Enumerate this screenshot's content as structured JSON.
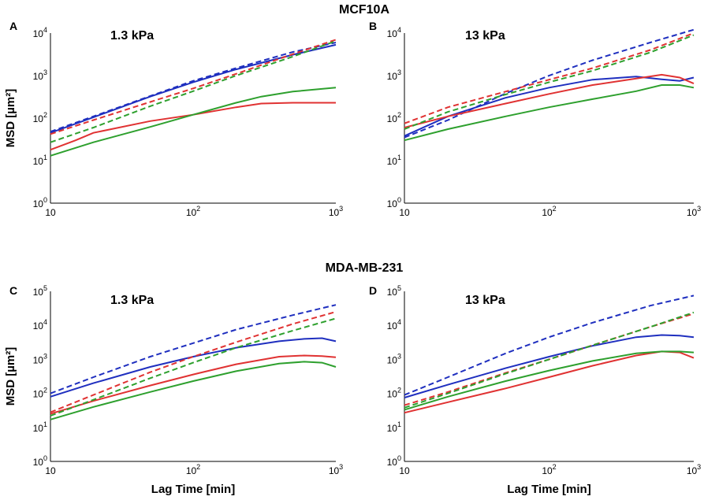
{
  "figure": {
    "row_titles": [
      "MCF10A",
      "MDA-MB-231"
    ]
  },
  "chart_data": [
    {
      "type": "line",
      "panel": "A",
      "title": "1.3 kPa",
      "xlabel": "",
      "ylabel": "MSD [µm²]",
      "xscale": "log",
      "yscale": "log",
      "xlim": [
        10,
        1000
      ],
      "ylim": [
        1,
        10000
      ],
      "xticks": [
        {
          "base": "10",
          "exp": ""
        },
        {
          "base": "10",
          "exp": "2"
        },
        {
          "base": "10",
          "exp": "3"
        }
      ],
      "yticks": [
        {
          "base": "10",
          "exp": "0"
        },
        {
          "base": "10",
          "exp": "1"
        },
        {
          "base": "10",
          "exp": "2"
        },
        {
          "base": "10",
          "exp": "3"
        },
        {
          "base": "10",
          "exp": "4"
        }
      ],
      "series": [
        {
          "name": "blue-dashed",
          "color": "#1f2fbf",
          "dash": true,
          "x": [
            10,
            20,
            50,
            100,
            200,
            500,
            1000
          ],
          "y": [
            48,
            110,
            330,
            750,
            1500,
            3600,
            6000
          ]
        },
        {
          "name": "blue-solid",
          "color": "#1f2fbf",
          "dash": false,
          "x": [
            10,
            20,
            50,
            100,
            200,
            500,
            1000
          ],
          "y": [
            45,
            105,
            320,
            700,
            1400,
            3100,
            5300
          ]
        },
        {
          "name": "red-dashed",
          "color": "#e03232",
          "dash": true,
          "x": [
            10,
            20,
            50,
            100,
            200,
            500,
            1000
          ],
          "y": [
            42,
            90,
            240,
            500,
            1100,
            3200,
            7000
          ]
        },
        {
          "name": "red-solid",
          "color": "#e03232",
          "dash": false,
          "x": [
            10,
            15,
            20,
            50,
            100,
            200,
            300,
            500,
            1000
          ],
          "y": [
            18,
            30,
            45,
            85,
            120,
            180,
            220,
            230,
            230
          ]
        },
        {
          "name": "green-dashed",
          "color": "#2ea02e",
          "dash": true,
          "x": [
            10,
            20,
            50,
            100,
            200,
            500,
            1000
          ],
          "y": [
            27,
            60,
            190,
            430,
            1000,
            2800,
            6500
          ]
        },
        {
          "name": "green-solid",
          "color": "#2ea02e",
          "dash": false,
          "x": [
            10,
            20,
            50,
            100,
            200,
            300,
            500,
            1000
          ],
          "y": [
            13,
            27,
            62,
            120,
            230,
            320,
            420,
            520
          ]
        }
      ]
    },
    {
      "type": "line",
      "panel": "B",
      "title": "13 kPa",
      "xlabel": "",
      "ylabel": "",
      "xscale": "log",
      "yscale": "log",
      "xlim": [
        10,
        1000
      ],
      "ylim": [
        1,
        10000
      ],
      "xticks": [
        {
          "base": "10",
          "exp": ""
        },
        {
          "base": "10",
          "exp": "2"
        },
        {
          "base": "10",
          "exp": "3"
        }
      ],
      "yticks": [
        {
          "base": "10",
          "exp": "0"
        },
        {
          "base": "10",
          "exp": "1"
        },
        {
          "base": "10",
          "exp": "2"
        },
        {
          "base": "10",
          "exp": "3"
        },
        {
          "base": "10",
          "exp": "4"
        }
      ],
      "series": [
        {
          "name": "blue-dashed",
          "color": "#1f2fbf",
          "dash": true,
          "x": [
            10,
            20,
            50,
            100,
            200,
            500,
            1000
          ],
          "y": [
            35,
            90,
            380,
            1000,
            2300,
            6000,
            12000
          ]
        },
        {
          "name": "blue-solid",
          "color": "#1f2fbf",
          "dash": false,
          "x": [
            10,
            20,
            50,
            100,
            200,
            400,
            600,
            800,
            1000
          ],
          "y": [
            38,
            110,
            300,
            520,
            800,
            950,
            820,
            750,
            900
          ]
        },
        {
          "name": "red-dashed",
          "color": "#e03232",
          "dash": true,
          "x": [
            10,
            20,
            50,
            100,
            200,
            500,
            1000
          ],
          "y": [
            75,
            180,
            420,
            800,
            1500,
            4000,
            10000
          ]
        },
        {
          "name": "red-solid",
          "color": "#e03232",
          "dash": false,
          "x": [
            10,
            20,
            50,
            100,
            200,
            400,
            600,
            800,
            1000
          ],
          "y": [
            60,
            110,
            220,
            370,
            600,
            850,
            1050,
            900,
            650
          ]
        },
        {
          "name": "green-dashed",
          "color": "#2ea02e",
          "dash": true,
          "x": [
            10,
            20,
            50,
            100,
            200,
            500,
            1000
          ],
          "y": [
            55,
            140,
            360,
            700,
            1300,
            3500,
            9000
          ]
        },
        {
          "name": "green-solid",
          "color": "#2ea02e",
          "dash": false,
          "x": [
            10,
            20,
            50,
            100,
            200,
            400,
            600,
            800,
            1000
          ],
          "y": [
            30,
            55,
            110,
            180,
            280,
            430,
            600,
            600,
            520
          ]
        }
      ]
    },
    {
      "type": "line",
      "panel": "C",
      "title": "1.3 kPa",
      "xlabel": "Lag Time [min]",
      "ylabel": "MSD [µm²]",
      "xscale": "log",
      "yscale": "log",
      "xlim": [
        10,
        1000
      ],
      "ylim": [
        1,
        100000
      ],
      "xticks": [
        {
          "base": "10",
          "exp": ""
        },
        {
          "base": "10",
          "exp": "2"
        },
        {
          "base": "10",
          "exp": "3"
        }
      ],
      "yticks": [
        {
          "base": "10",
          "exp": "0"
        },
        {
          "base": "10",
          "exp": "1"
        },
        {
          "base": "10",
          "exp": "2"
        },
        {
          "base": "10",
          "exp": "3"
        },
        {
          "base": "10",
          "exp": "4"
        },
        {
          "base": "10",
          "exp": "5"
        }
      ],
      "series": [
        {
          "name": "blue-dashed",
          "color": "#1f2fbf",
          "dash": true,
          "x": [
            10,
            20,
            50,
            100,
            200,
            500,
            1000
          ],
          "y": [
            100,
            300,
            1200,
            3000,
            7500,
            20000,
            40000
          ]
        },
        {
          "name": "blue-solid",
          "color": "#1f2fbf",
          "dash": false,
          "x": [
            10,
            20,
            50,
            100,
            200,
            400,
            600,
            800,
            1000
          ],
          "y": [
            80,
            200,
            600,
            1200,
            2200,
            3400,
            4000,
            4200,
            3400
          ]
        },
        {
          "name": "red-dashed",
          "color": "#e03232",
          "dash": true,
          "x": [
            10,
            20,
            50,
            100,
            200,
            500,
            1000
          ],
          "y": [
            28,
            90,
            420,
            1200,
            3200,
            11000,
            25000
          ]
        },
        {
          "name": "red-solid",
          "color": "#e03232",
          "dash": false,
          "x": [
            10,
            20,
            50,
            100,
            200,
            400,
            600,
            800,
            1000
          ],
          "y": [
            25,
            60,
            170,
            360,
            720,
            1200,
            1300,
            1250,
            1150
          ]
        },
        {
          "name": "green-dashed",
          "color": "#2ea02e",
          "dash": true,
          "x": [
            10,
            20,
            50,
            100,
            200,
            500,
            1000
          ],
          "y": [
            22,
            65,
            280,
            800,
            2200,
            7000,
            16000
          ]
        },
        {
          "name": "green-solid",
          "color": "#2ea02e",
          "dash": false,
          "x": [
            10,
            20,
            50,
            100,
            200,
            400,
            600,
            800,
            1000
          ],
          "y": [
            17,
            40,
            110,
            230,
            450,
            750,
            850,
            800,
            600
          ]
        }
      ]
    },
    {
      "type": "line",
      "panel": "D",
      "title": "13 kPa",
      "xlabel": "Lag Time [min]",
      "ylabel": "",
      "xscale": "log",
      "yscale": "log",
      "xlim": [
        10,
        1000
      ],
      "ylim": [
        1,
        100000
      ],
      "xticks": [
        {
          "base": "10",
          "exp": ""
        },
        {
          "base": "10",
          "exp": "2"
        },
        {
          "base": "10",
          "exp": "3"
        }
      ],
      "yticks": [
        {
          "base": "10",
          "exp": "0"
        },
        {
          "base": "10",
          "exp": "1"
        },
        {
          "base": "10",
          "exp": "2"
        },
        {
          "base": "10",
          "exp": "3"
        },
        {
          "base": "10",
          "exp": "4"
        },
        {
          "base": "10",
          "exp": "5"
        }
      ],
      "series": [
        {
          "name": "blue-dashed",
          "color": "#1f2fbf",
          "dash": true,
          "x": [
            10,
            20,
            50,
            100,
            200,
            500,
            1000
          ],
          "y": [
            90,
            300,
            1500,
            4500,
            12000,
            38000,
            75000
          ]
        },
        {
          "name": "blue-solid",
          "color": "#1f2fbf",
          "dash": false,
          "x": [
            10,
            20,
            50,
            100,
            200,
            400,
            600,
            800,
            1000
          ],
          "y": [
            75,
            180,
            550,
            1200,
            2500,
            4500,
            5200,
            5000,
            4500
          ]
        },
        {
          "name": "red-dashed",
          "color": "#e03232",
          "dash": true,
          "x": [
            10,
            20,
            50,
            100,
            200,
            500,
            1000
          ],
          "y": [
            45,
            110,
            400,
            1000,
            2600,
            9000,
            22000
          ]
        },
        {
          "name": "red-solid",
          "color": "#e03232",
          "dash": false,
          "x": [
            10,
            20,
            50,
            100,
            200,
            400,
            600,
            800,
            1000
          ],
          "y": [
            27,
            55,
            140,
            300,
            650,
            1300,
            1700,
            1600,
            1100
          ]
        },
        {
          "name": "green-dashed",
          "color": "#2ea02e",
          "dash": true,
          "x": [
            10,
            20,
            50,
            100,
            200,
            500,
            1000
          ],
          "y": [
            38,
            100,
            380,
            1000,
            2600,
            9000,
            24000
          ]
        },
        {
          "name": "green-solid",
          "color": "#2ea02e",
          "dash": false,
          "x": [
            10,
            20,
            50,
            100,
            200,
            400,
            600,
            800,
            1000
          ],
          "y": [
            33,
            80,
            230,
            470,
            900,
            1500,
            1700,
            1700,
            1600
          ]
        }
      ]
    }
  ]
}
